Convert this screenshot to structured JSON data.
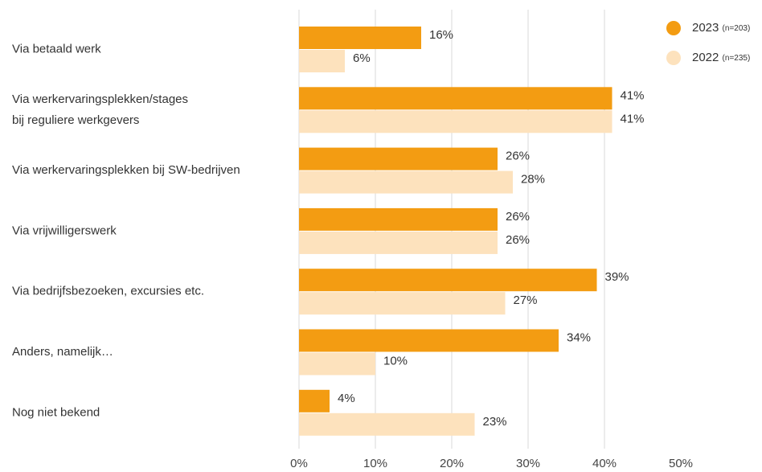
{
  "colors": {
    "series_2023": "#f39c12",
    "series_2022": "#fde2bd",
    "grid": "#d9d9d9"
  },
  "chart_data": {
    "type": "bar",
    "orientation": "horizontal",
    "categories": [
      [
        "Via betaald werk"
      ],
      [
        "Via werkervaringsplekken/stages",
        "bij reguliere werkgevers"
      ],
      [
        "Via werkervaringsplekken bij SW-bedrijven"
      ],
      [
        "Via vrijwilligerswerk"
      ],
      [
        "Via bedrijfsbezoeken, excursies etc."
      ],
      [
        "Anders, namelijk…"
      ],
      [
        "Nog niet bekend"
      ]
    ],
    "series": [
      {
        "name": "2023",
        "n_label": "(n=203)",
        "values": [
          16,
          41,
          26,
          26,
          39,
          34,
          4
        ]
      },
      {
        "name": "2022",
        "n_label": "(n=235)",
        "values": [
          6,
          41,
          28,
          26,
          27,
          10,
          23
        ]
      }
    ],
    "value_suffix": "%",
    "xlim": [
      0,
      50
    ],
    "xticks": [
      0,
      10,
      20,
      30,
      40,
      50
    ],
    "xtick_labels": [
      "0%",
      "10%",
      "20%",
      "30%",
      "40%",
      "50%"
    ],
    "grid": true,
    "legend": "top-right"
  }
}
